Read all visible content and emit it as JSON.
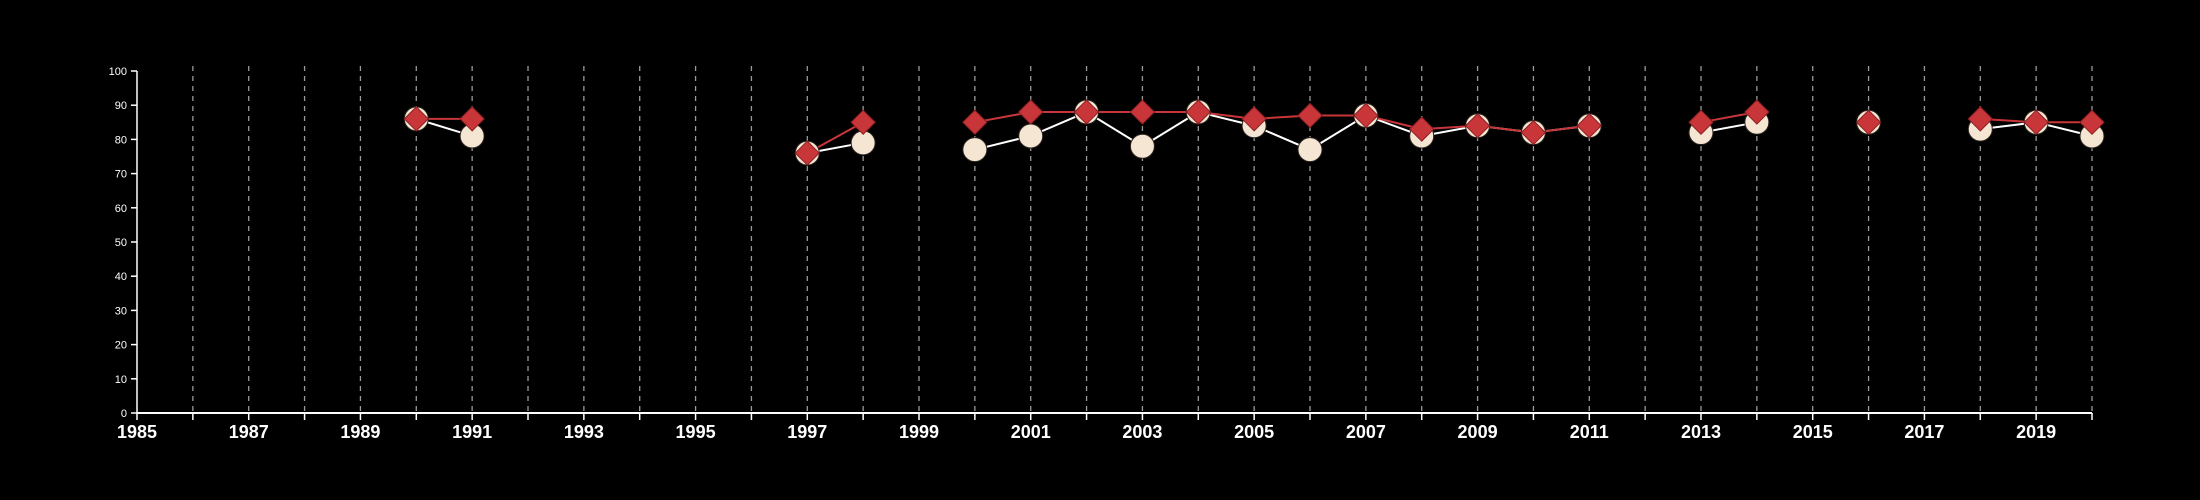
{
  "chart_data": {
    "type": "line",
    "title": "",
    "xlabel": "",
    "ylabel": "",
    "xlim": [
      1985,
      2020
    ],
    "ylim": [
      0,
      100
    ],
    "x_ticks": [
      1985,
      1987,
      1989,
      1991,
      1993,
      1995,
      1997,
      1999,
      2001,
      2003,
      2005,
      2007,
      2009,
      2011,
      2013,
      2015,
      2017,
      2019
    ],
    "y_ticks": [
      0,
      10,
      20,
      30,
      40,
      50,
      60,
      70,
      80,
      90,
      100
    ],
    "vertical_gridlines": "dashed, every year from 1986 to 2020",
    "horizontal_grid": false,
    "legend": "none",
    "series": [
      {
        "marker": "circle",
        "color": "#ffffff",
        "marker_fill": "#f5e6d3",
        "points": [
          {
            "x": 1990,
            "y": 86
          },
          {
            "x": 1991,
            "y": 81
          },
          {
            "x": 1997,
            "y": 76
          },
          {
            "x": 1998,
            "y": 79
          },
          {
            "x": 2000,
            "y": 77
          },
          {
            "x": 2001,
            "y": 81
          },
          {
            "x": 2002,
            "y": 88
          },
          {
            "x": 2003,
            "y": 78
          },
          {
            "x": 2004,
            "y": 88
          },
          {
            "x": 2005,
            "y": 84
          },
          {
            "x": 2006,
            "y": 77
          },
          {
            "x": 2007,
            "y": 87
          },
          {
            "x": 2008,
            "y": 81
          },
          {
            "x": 2009,
            "y": 84
          },
          {
            "x": 2010,
            "y": 82
          },
          {
            "x": 2011,
            "y": 84
          },
          {
            "x": 2013,
            "y": 82
          },
          {
            "x": 2014,
            "y": 85
          },
          {
            "x": 2016,
            "y": 85
          },
          {
            "x": 2018,
            "y": 83
          },
          {
            "x": 2019,
            "y": 85
          },
          {
            "x": 2020,
            "y": 81
          }
        ]
      },
      {
        "marker": "diamond",
        "color": "#c8363a",
        "marker_fill": "#c8363a",
        "points": [
          {
            "x": 1990,
            "y": 86
          },
          {
            "x": 1991,
            "y": 86
          },
          {
            "x": 1997,
            "y": 76
          },
          {
            "x": 1998,
            "y": 85
          },
          {
            "x": 2000,
            "y": 85
          },
          {
            "x": 2001,
            "y": 88
          },
          {
            "x": 2002,
            "y": 88
          },
          {
            "x": 2003,
            "y": 88
          },
          {
            "x": 2004,
            "y": 88
          },
          {
            "x": 2005,
            "y": 86
          },
          {
            "x": 2006,
            "y": 87
          },
          {
            "x": 2007,
            "y": 87
          },
          {
            "x": 2008,
            "y": 83
          },
          {
            "x": 2009,
            "y": 84
          },
          {
            "x": 2010,
            "y": 82
          },
          {
            "x": 2011,
            "y": 84
          },
          {
            "x": 2013,
            "y": 85
          },
          {
            "x": 2014,
            "y": 88
          },
          {
            "x": 2016,
            "y": 85
          },
          {
            "x": 2018,
            "y": 86
          },
          {
            "x": 2019,
            "y": 85
          },
          {
            "x": 2020,
            "y": 85
          }
        ]
      }
    ]
  }
}
